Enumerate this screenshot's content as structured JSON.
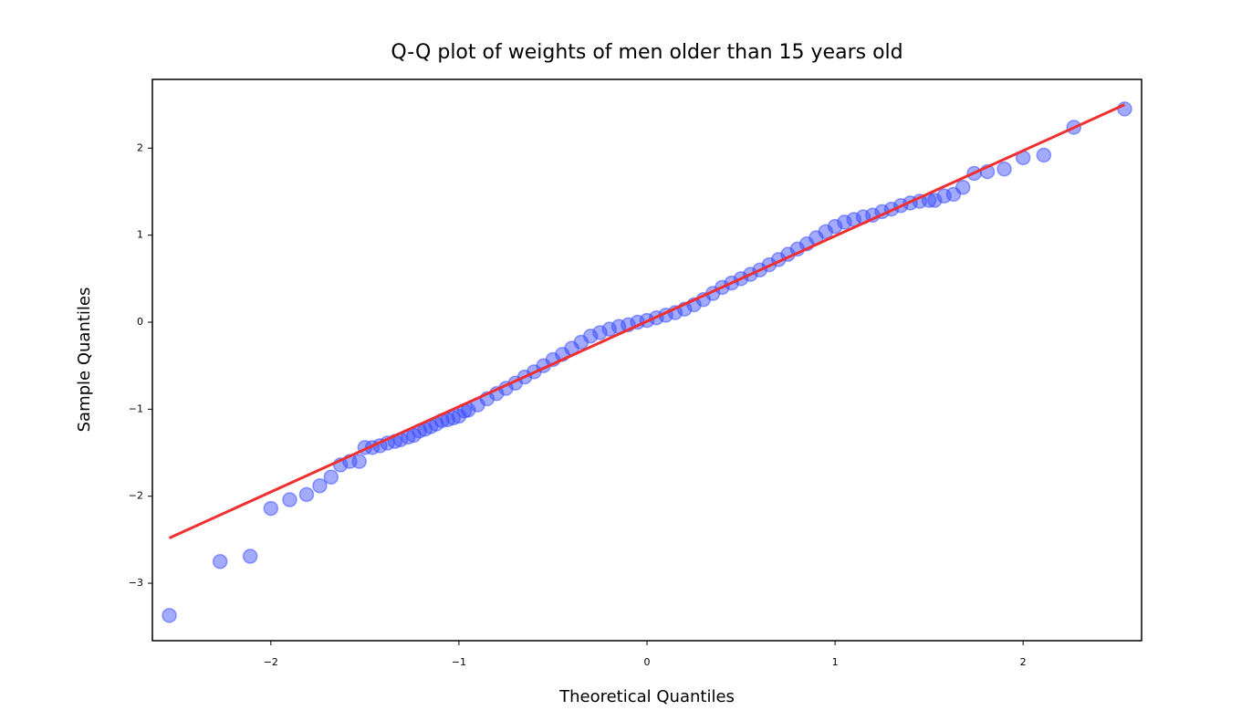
{
  "chart_data": {
    "type": "scatter",
    "title": "Q-Q plot of weights of men older than 15 years old",
    "xlabel": "Theoretical Quantiles",
    "ylabel": "Sample Quantiles",
    "xlim": [
      -2.63,
      2.63
    ],
    "ylim": [
      -3.66,
      2.79
    ],
    "xticks": [
      {
        "value": -2,
        "label": "−2"
      },
      {
        "value": -1,
        "label": "−1"
      },
      0,
      1,
      2
    ],
    "yticks": [
      {
        "value": -3,
        "label": "−3"
      },
      {
        "value": -2,
        "label": "−2"
      },
      {
        "value": -1,
        "label": "−1"
      },
      0,
      1,
      2
    ],
    "grid": false,
    "series": [
      {
        "color": "#3344ff",
        "x": [
          -2.54,
          -2.27,
          -2.11,
          -2.0,
          -1.9,
          -1.81,
          -1.74,
          -1.68,
          -1.63,
          -1.58,
          -1.53,
          -1.5,
          -1.46,
          -1.42,
          -1.38,
          -1.34,
          -1.31,
          -1.27,
          -1.24,
          -1.21,
          -1.18,
          -1.15,
          -1.12,
          -1.09,
          -1.06,
          -1.03,
          -1.0,
          -0.97,
          -0.95,
          -0.9,
          -0.85,
          -0.8,
          -0.75,
          -0.7,
          -0.65,
          -0.6,
          -0.55,
          -0.5,
          -0.45,
          -0.4,
          -0.35,
          -0.3,
          -0.25,
          -0.2,
          -0.15,
          -0.1,
          -0.05,
          0,
          0.05,
          0.1,
          0.15,
          0.2,
          0.25,
          0.3,
          0.35,
          0.4,
          0.45,
          0.5,
          0.55,
          0.6,
          0.65,
          0.7,
          0.75,
          0.8,
          0.85,
          0.9,
          0.95,
          1.0,
          1.05,
          1.1,
          1.15,
          1.2,
          1.25,
          1.3,
          1.35,
          1.4,
          1.45,
          1.5,
          1.53,
          1.58,
          1.63,
          1.68,
          1.74,
          1.81,
          1.9,
          2.0,
          2.11,
          2.27,
          2.54
        ],
        "values": [
          -3.37,
          -2.75,
          -2.69,
          -2.14,
          -2.04,
          -1.98,
          -1.88,
          -1.78,
          -1.64,
          -1.6,
          -1.6,
          -1.44,
          -1.44,
          -1.42,
          -1.39,
          -1.37,
          -1.35,
          -1.32,
          -1.3,
          -1.25,
          -1.23,
          -1.2,
          -1.17,
          -1.13,
          -1.12,
          -1.1,
          -1.08,
          -1.02,
          -1.01,
          -0.95,
          -0.88,
          -0.82,
          -0.76,
          -0.7,
          -0.63,
          -0.57,
          -0.5,
          -0.43,
          -0.37,
          -0.3,
          -0.23,
          -0.16,
          -0.12,
          -0.08,
          -0.05,
          -0.03,
          0.0,
          0.02,
          0.05,
          0.08,
          0.11,
          0.15,
          0.2,
          0.26,
          0.33,
          0.4,
          0.45,
          0.5,
          0.55,
          0.6,
          0.66,
          0.72,
          0.78,
          0.84,
          0.9,
          0.97,
          1.04,
          1.1,
          1.15,
          1.18,
          1.21,
          1.23,
          1.27,
          1.3,
          1.34,
          1.37,
          1.39,
          1.4,
          1.4,
          1.45,
          1.47,
          1.55,
          1.71,
          1.73,
          1.76,
          1.89,
          1.92,
          2.24,
          2.45
        ]
      }
    ],
    "line": {
      "color": "#f03030",
      "x": [
        -2.54,
        2.54
      ],
      "y": [
        -2.48,
        2.5
      ]
    }
  }
}
